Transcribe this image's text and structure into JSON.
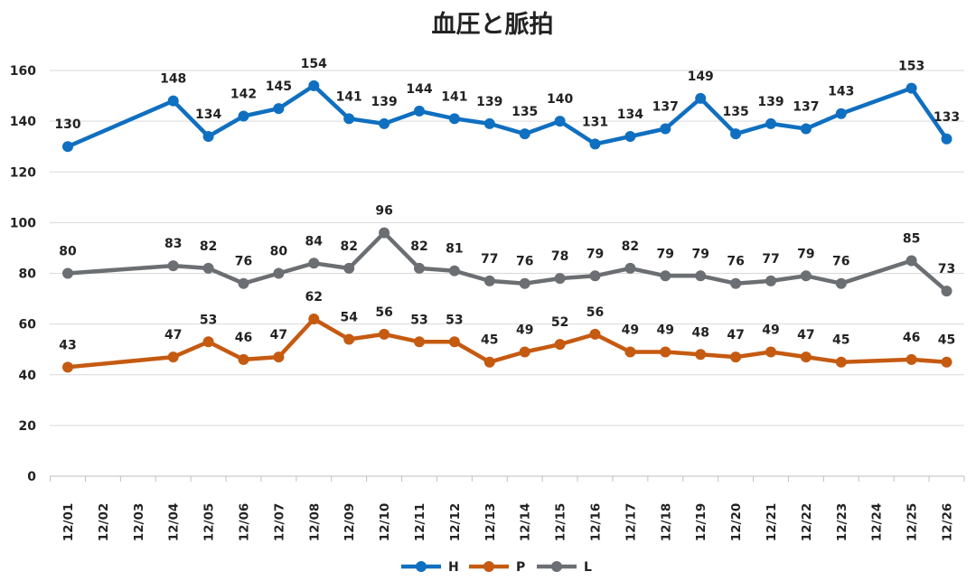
{
  "chart_data": {
    "type": "line",
    "title": "血圧と脈拍",
    "xlabel": "",
    "ylabel": "",
    "ylim": [
      0,
      160
    ],
    "yticks": [
      0,
      20,
      40,
      60,
      80,
      100,
      120,
      140,
      160
    ],
    "categories": [
      "12/01",
      "12/02",
      "12/03",
      "12/04",
      "12/05",
      "12/06",
      "12/07",
      "12/08",
      "12/09",
      "12/10",
      "12/11",
      "12/12",
      "12/13",
      "12/14",
      "12/15",
      "12/16",
      "12/17",
      "12/18",
      "12/19",
      "12/20",
      "12/21",
      "12/22",
      "12/23",
      "12/24",
      "12/25",
      "12/26"
    ],
    "legend_position": "bottom",
    "grid": "horizontal",
    "series": [
      {
        "name": "H",
        "color": "#0f6fc0",
        "values": [
          130,
          null,
          null,
          148,
          134,
          142,
          145,
          154,
          141,
          139,
          144,
          141,
          139,
          135,
          140,
          131,
          134,
          137,
          149,
          135,
          139,
          137,
          143,
          null,
          153,
          133
        ]
      },
      {
        "name": "P",
        "color": "#c55a11",
        "values": [
          43,
          null,
          null,
          47,
          53,
          46,
          47,
          62,
          54,
          56,
          53,
          53,
          45,
          49,
          52,
          56,
          49,
          49,
          48,
          47,
          49,
          47,
          45,
          null,
          46,
          45
        ]
      },
      {
        "name": "L",
        "color": "#6b6e72",
        "values": [
          80,
          null,
          null,
          83,
          82,
          76,
          80,
          84,
          82,
          96,
          82,
          81,
          77,
          76,
          78,
          79,
          82,
          79,
          79,
          76,
          77,
          79,
          76,
          null,
          85,
          73
        ]
      }
    ]
  }
}
